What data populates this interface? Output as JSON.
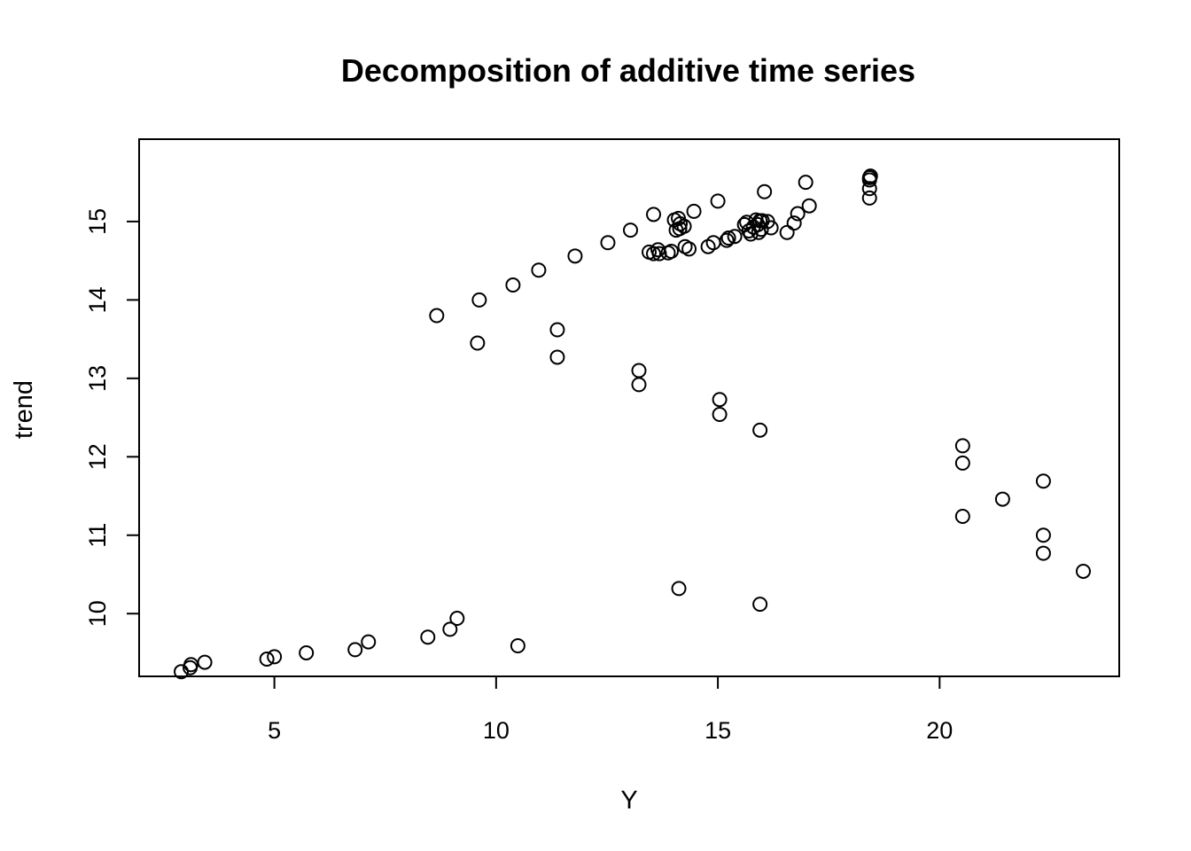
{
  "chart_data": {
    "type": "scatter",
    "title": "Decomposition of additive time series",
    "xlabel": "Y",
    "ylabel": "trend",
    "xlim": [
      1.95,
      24.05
    ],
    "ylim": [
      9.2,
      16.05
    ],
    "xticks": [
      5,
      10,
      15,
      20
    ],
    "yticks": [
      10,
      11,
      12,
      13,
      14,
      15
    ],
    "xtick_labels": [
      "5",
      "10",
      "15",
      "20"
    ],
    "ytick_labels": [
      "10",
      "11",
      "12",
      "13",
      "14",
      "15"
    ],
    "grid": false,
    "box": true,
    "points": [
      {
        "x": 2.9,
        "y": 9.26
      },
      {
        "x": 3.1,
        "y": 9.31
      },
      {
        "x": 3.12,
        "y": 9.35
      },
      {
        "x": 3.43,
        "y": 9.38
      },
      {
        "x": 4.83,
        "y": 9.42
      },
      {
        "x": 5.0,
        "y": 9.45
      },
      {
        "x": 5.72,
        "y": 9.5
      },
      {
        "x": 6.82,
        "y": 9.54
      },
      {
        "x": 7.12,
        "y": 9.64
      },
      {
        "x": 8.46,
        "y": 9.7
      },
      {
        "x": 8.96,
        "y": 9.8
      },
      {
        "x": 9.12,
        "y": 9.94
      },
      {
        "x": 10.49,
        "y": 9.59
      },
      {
        "x": 8.66,
        "y": 13.8
      },
      {
        "x": 9.58,
        "y": 13.45
      },
      {
        "x": 9.62,
        "y": 14.0
      },
      {
        "x": 10.38,
        "y": 14.19
      },
      {
        "x": 10.96,
        "y": 14.38
      },
      {
        "x": 11.78,
        "y": 14.56
      },
      {
        "x": 11.38,
        "y": 13.62
      },
      {
        "x": 11.38,
        "y": 13.27
      },
      {
        "x": 12.52,
        "y": 14.73
      },
      {
        "x": 13.03,
        "y": 14.89
      },
      {
        "x": 13.22,
        "y": 13.1
      },
      {
        "x": 13.22,
        "y": 12.92
      },
      {
        "x": 13.45,
        "y": 14.61
      },
      {
        "x": 13.55,
        "y": 14.59
      },
      {
        "x": 13.55,
        "y": 15.09
      },
      {
        "x": 13.65,
        "y": 14.64
      },
      {
        "x": 13.68,
        "y": 14.59
      },
      {
        "x": 13.88,
        "y": 14.6
      },
      {
        "x": 13.95,
        "y": 14.62
      },
      {
        "x": 14.02,
        "y": 15.02
      },
      {
        "x": 14.06,
        "y": 14.89
      },
      {
        "x": 14.11,
        "y": 15.04
      },
      {
        "x": 14.14,
        "y": 14.91
      },
      {
        "x": 14.15,
        "y": 14.97
      },
      {
        "x": 14.24,
        "y": 14.94
      },
      {
        "x": 14.26,
        "y": 14.68
      },
      {
        "x": 14.35,
        "y": 14.65
      },
      {
        "x": 14.46,
        "y": 15.13
      },
      {
        "x": 14.12,
        "y": 10.32
      },
      {
        "x": 14.78,
        "y": 14.68
      },
      {
        "x": 14.9,
        "y": 14.73
      },
      {
        "x": 15.0,
        "y": 15.26
      },
      {
        "x": 15.04,
        "y": 12.73
      },
      {
        "x": 15.04,
        "y": 12.54
      },
      {
        "x": 15.2,
        "y": 14.76
      },
      {
        "x": 15.24,
        "y": 14.79
      },
      {
        "x": 15.38,
        "y": 14.81
      },
      {
        "x": 15.6,
        "y": 14.96
      },
      {
        "x": 15.65,
        "y": 14.99
      },
      {
        "x": 15.7,
        "y": 14.88
      },
      {
        "x": 15.74,
        "y": 14.84
      },
      {
        "x": 15.8,
        "y": 14.93
      },
      {
        "x": 15.86,
        "y": 15.02
      },
      {
        "x": 15.9,
        "y": 14.96
      },
      {
        "x": 15.92,
        "y": 14.86
      },
      {
        "x": 15.95,
        "y": 15.01
      },
      {
        "x": 15.98,
        "y": 14.9
      },
      {
        "x": 16.0,
        "y": 15.01
      },
      {
        "x": 15.95,
        "y": 12.34
      },
      {
        "x": 15.95,
        "y": 10.12
      },
      {
        "x": 16.05,
        "y": 15.38
      },
      {
        "x": 16.12,
        "y": 15.0
      },
      {
        "x": 16.2,
        "y": 14.92
      },
      {
        "x": 16.56,
        "y": 14.86
      },
      {
        "x": 16.72,
        "y": 14.98
      },
      {
        "x": 16.8,
        "y": 15.1
      },
      {
        "x": 16.98,
        "y": 15.5
      },
      {
        "x": 17.06,
        "y": 15.2
      },
      {
        "x": 18.42,
        "y": 15.3
      },
      {
        "x": 18.42,
        "y": 15.42
      },
      {
        "x": 18.42,
        "y": 15.53
      },
      {
        "x": 18.42,
        "y": 15.56
      },
      {
        "x": 18.44,
        "y": 15.58
      },
      {
        "x": 20.52,
        "y": 12.14
      },
      {
        "x": 20.52,
        "y": 11.92
      },
      {
        "x": 20.52,
        "y": 11.24
      },
      {
        "x": 21.42,
        "y": 11.46
      },
      {
        "x": 22.34,
        "y": 11.69
      },
      {
        "x": 22.34,
        "y": 11.0
      },
      {
        "x": 22.34,
        "y": 10.77
      },
      {
        "x": 23.24,
        "y": 10.54
      }
    ]
  }
}
